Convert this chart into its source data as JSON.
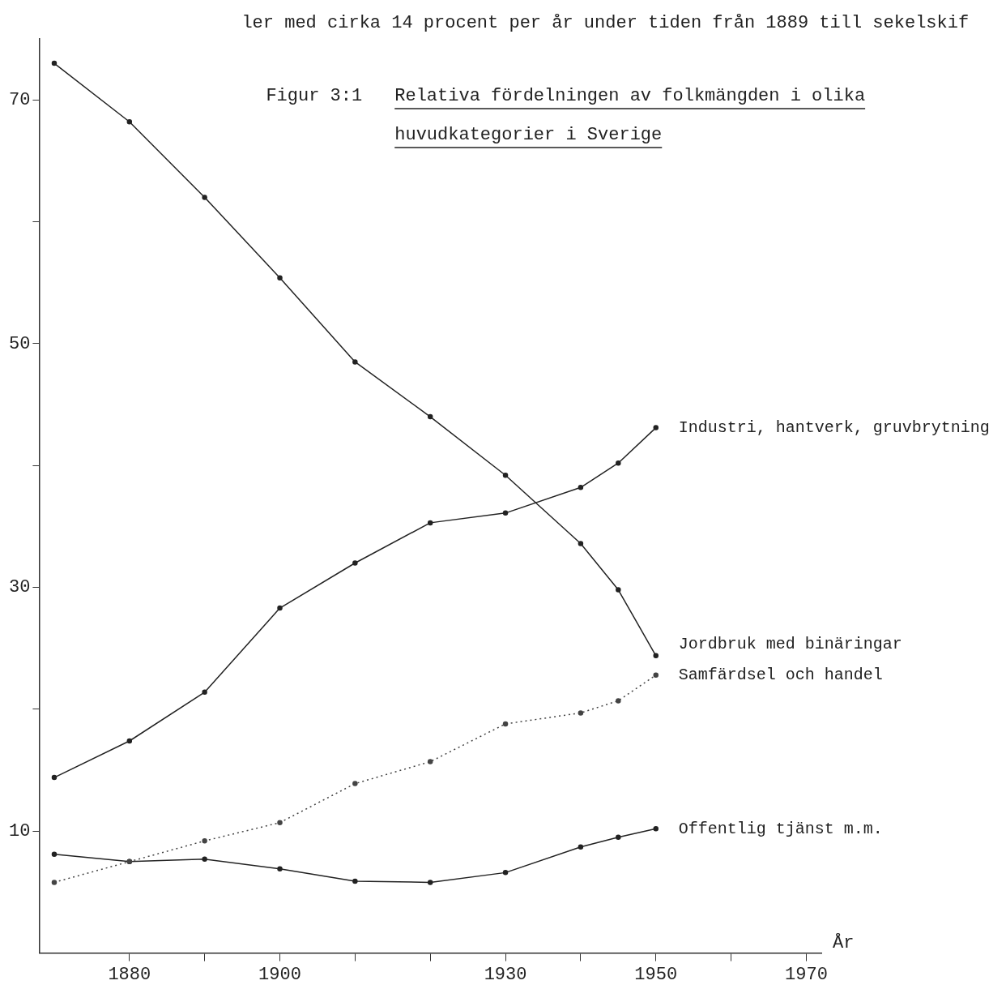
{
  "chart_data": {
    "type": "line",
    "title": "Figur 3:1  Relativa fördelningen av folkmängden i olika huvudkategorier i Sverige",
    "annotations": [
      "ler med cirka 14 procent per år under tiden från 1889 till sekelskif"
    ],
    "xlabel": "År",
    "x": [
      1870,
      1880,
      1890,
      1900,
      1910,
      1920,
      1930,
      1940,
      1945,
      1950
    ],
    "xlim": [
      1868,
      1972
    ],
    "xticks": [
      {
        "value": 1880,
        "label": "1880"
      },
      {
        "value": 1890,
        "label": null
      },
      {
        "value": 1900,
        "label": "1900"
      },
      {
        "value": 1910,
        "label": null
      },
      {
        "value": 1920,
        "label": null
      },
      {
        "value": 1930,
        "label": "1930"
      },
      {
        "value": 1940,
        "label": null
      },
      {
        "value": 1950,
        "label": "1950"
      },
      {
        "value": 1960,
        "label": null
      },
      {
        "value": 1970,
        "label": "1970"
      }
    ],
    "ylim": [
      0,
      75
    ],
    "yticks": [
      10,
      {
        "value": 20,
        "label": null
      },
      30,
      {
        "value": 40,
        "label": null
      },
      50,
      {
        "value": 60,
        "label": null
      },
      70
    ],
    "marker": "circle",
    "series": [
      {
        "name": "Jordbruk med binäringar",
        "color": "#222222",
        "values": [
          73,
          68.2,
          62,
          55.4,
          48.5,
          44,
          39.2,
          33.6,
          29.8,
          24.4
        ]
      },
      {
        "name": "Industri, hantverk, gruvbrytning",
        "color": "#222222",
        "values": [
          14.4,
          17.4,
          21.4,
          28.3,
          32,
          35.3,
          36.1,
          38.2,
          40.2,
          43.1
        ]
      },
      {
        "name": "Samfärdsel och handel",
        "color": "#444444",
        "line_style": "dotted",
        "values": [
          5.8,
          7.5,
          9.2,
          10.7,
          13.9,
          15.7,
          18.8,
          19.7,
          20.7,
          22.8
        ]
      },
      {
        "name": "Offentlig tjänst m.m.",
        "color": "#222222",
        "values": [
          8.1,
          7.5,
          7.7,
          6.9,
          5.9,
          5.8,
          6.6,
          8.7,
          9.5,
          10.2
        ]
      }
    ]
  }
}
